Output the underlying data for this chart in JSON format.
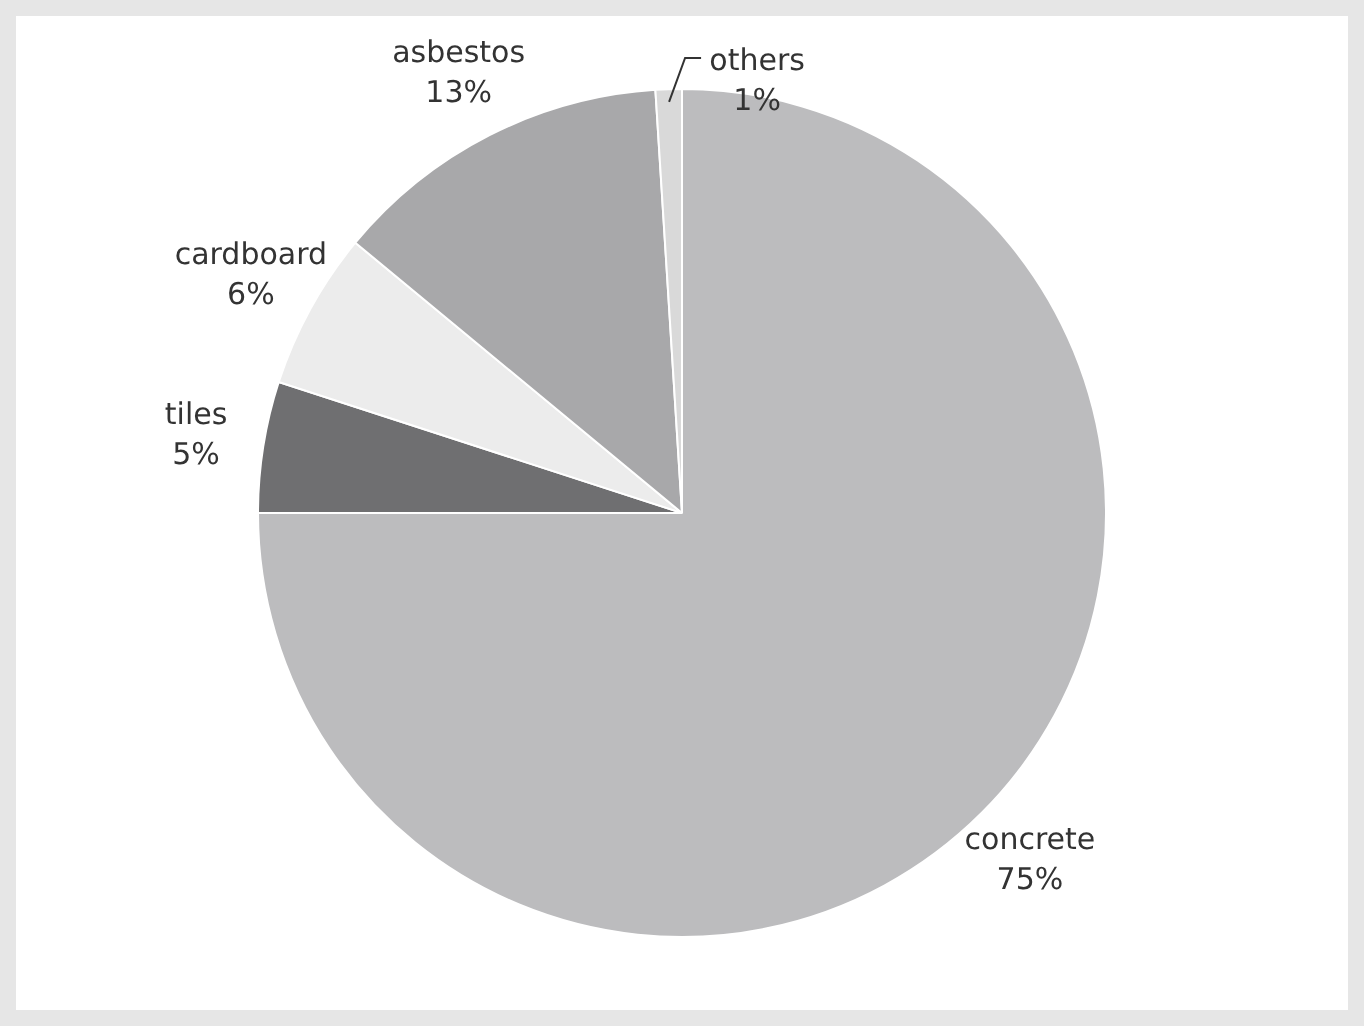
{
  "chart_data": {
    "type": "pie",
    "categories": [
      "concrete",
      "tiles",
      "cardboard",
      "asbestos",
      "others"
    ],
    "values": [
      75,
      5,
      6,
      13,
      1
    ],
    "value_labels": [
      "75%",
      "5%",
      "6%",
      "13%",
      "1%"
    ],
    "colors": [
      "#bcbcbe",
      "#6f6f71",
      "#ececec",
      "#a8a8aa",
      "#d9d9d9"
    ]
  }
}
